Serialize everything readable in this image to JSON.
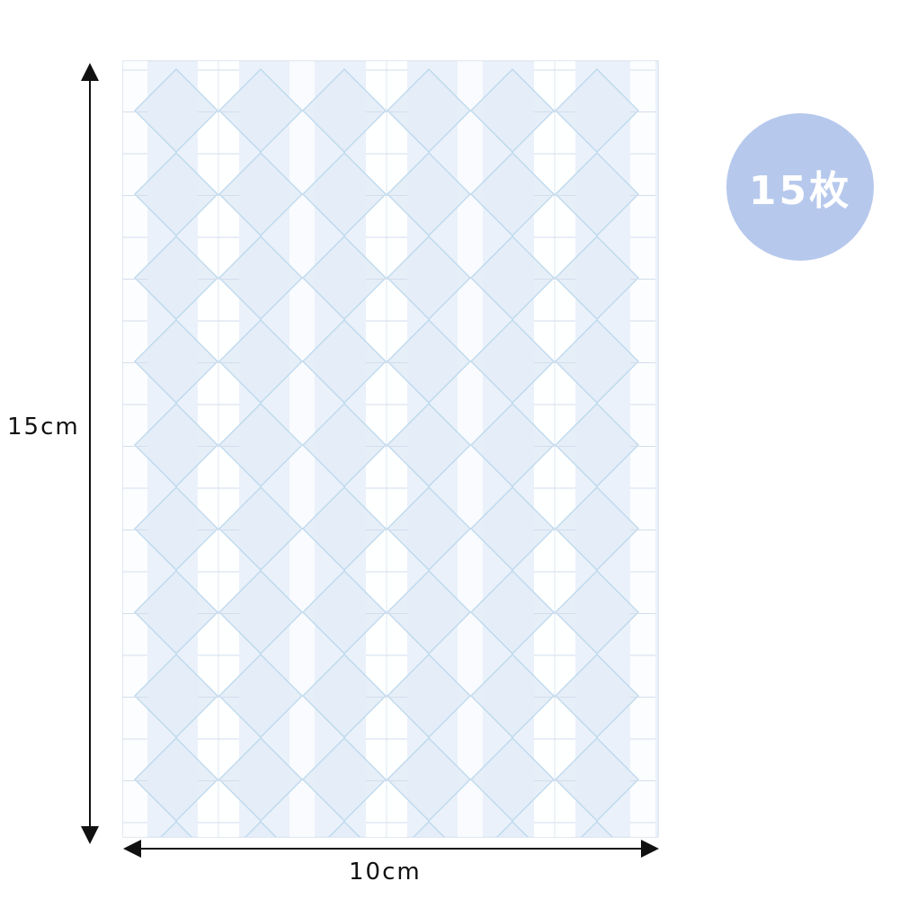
{
  "dimensions": {
    "height_label": "15cm",
    "width_label": "10cm"
  },
  "badge": {
    "count_label": "15枚",
    "color": "#b6c8ec"
  },
  "product": {
    "sheet_color": "#eef3fb",
    "strip_color": "#ffffff",
    "line_color": "#b9d7ec"
  }
}
